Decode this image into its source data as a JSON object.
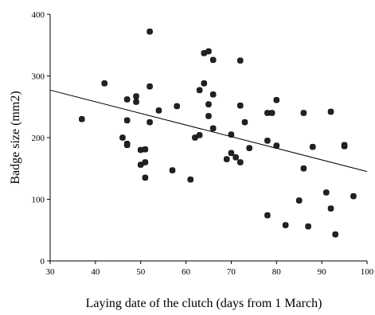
{
  "chart_data": {
    "type": "scatter",
    "title": "",
    "xlabel": "Laying date of the clutch (days from 1 March)",
    "ylabel": "Badge size (mm2)",
    "xlim": [
      30,
      100
    ],
    "ylim": [
      0,
      400
    ],
    "x_ticks": [
      30,
      40,
      50,
      60,
      70,
      80,
      90,
      100
    ],
    "y_ticks": [
      0,
      100,
      200,
      300,
      400
    ],
    "grid": false,
    "legend": "none",
    "series": [
      {
        "points": [
          [
            37,
            230
          ],
          [
            42,
            288
          ],
          [
            46,
            200
          ],
          [
            47,
            262
          ],
          [
            47,
            228
          ],
          [
            47,
            190
          ],
          [
            47,
            188
          ],
          [
            49,
            258
          ],
          [
            49,
            267
          ],
          [
            50,
            180
          ],
          [
            50,
            156
          ],
          [
            51,
            181
          ],
          [
            51,
            160
          ],
          [
            51,
            135
          ],
          [
            52,
            372
          ],
          [
            52,
            283
          ],
          [
            52,
            225
          ],
          [
            54,
            244
          ],
          [
            57,
            147
          ],
          [
            58,
            251
          ],
          [
            61,
            132
          ],
          [
            62,
            200
          ],
          [
            63,
            204
          ],
          [
            63,
            277
          ],
          [
            64,
            288
          ],
          [
            64,
            337
          ],
          [
            65,
            340
          ],
          [
            65,
            254
          ],
          [
            65,
            235
          ],
          [
            66,
            326
          ],
          [
            66,
            270
          ],
          [
            66,
            215
          ],
          [
            69,
            165
          ],
          [
            70,
            175
          ],
          [
            70,
            205
          ],
          [
            71,
            168
          ],
          [
            72,
            325
          ],
          [
            72,
            252
          ],
          [
            72,
            160
          ],
          [
            73,
            225
          ],
          [
            74,
            183
          ],
          [
            78,
            195
          ],
          [
            78,
            240
          ],
          [
            78,
            74
          ],
          [
            79,
            240
          ],
          [
            80,
            261
          ],
          [
            80,
            187
          ],
          [
            82,
            58
          ],
          [
            85,
            98
          ],
          [
            86,
            240
          ],
          [
            86,
            150
          ],
          [
            87,
            56
          ],
          [
            88,
            185
          ],
          [
            91,
            111
          ],
          [
            92,
            242
          ],
          [
            92,
            85
          ],
          [
            93,
            43
          ],
          [
            95,
            186
          ],
          [
            95,
            188
          ],
          [
            97,
            105
          ]
        ]
      }
    ],
    "trendline": {
      "x": [
        30,
        100
      ],
      "y": [
        277,
        145
      ]
    }
  }
}
